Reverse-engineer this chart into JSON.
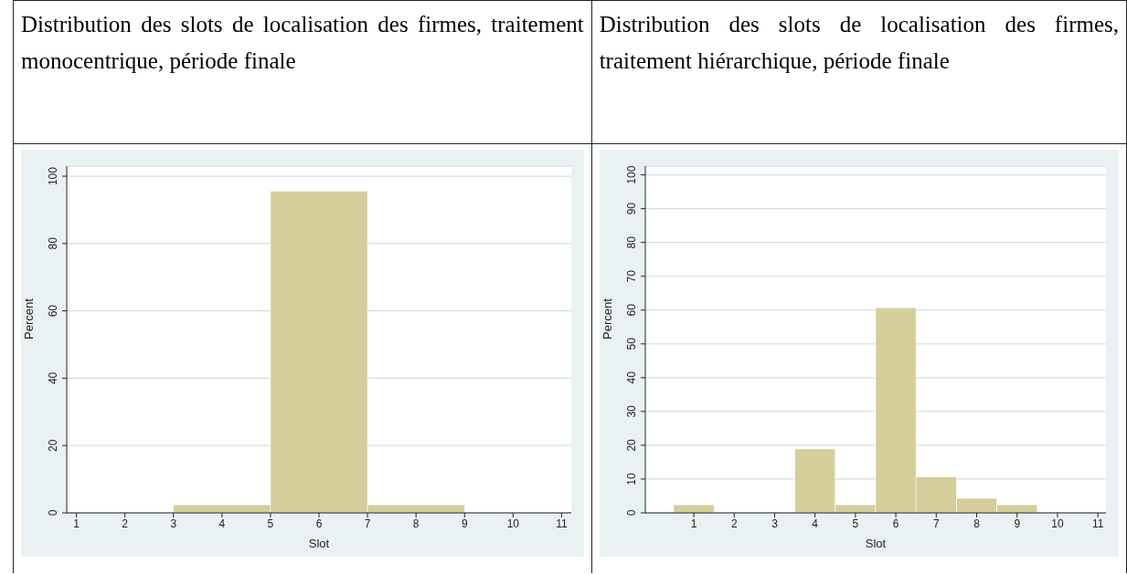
{
  "chart_data": [
    {
      "type": "histogram",
      "title": "Distribution des slots de localisation des firmes, traitement monocentrique, période finale",
      "xlabel": "Slot",
      "ylabel": "Percent",
      "bins": [
        3,
        5,
        7,
        9
      ],
      "values": [
        2.4,
        95.6,
        2.4
      ],
      "color": "#d5cd9a",
      "xlim": [
        0.8,
        11.2
      ],
      "xticks": [
        1,
        2,
        3,
        4,
        5,
        6,
        7,
        8,
        9,
        10,
        11
      ],
      "ylim": [
        0,
        103
      ],
      "yticks": [
        0,
        20,
        40,
        60,
        80,
        100
      ],
      "grid": "y"
    },
    {
      "type": "histogram",
      "title": "Distribution des slots de localisation des firmes, traitement hiérarchique, période finale",
      "xlabel": "Slot",
      "ylabel": "Percent",
      "bins": [
        0.5,
        1.5,
        2.5,
        3.5,
        4.5,
        5.5,
        6.5,
        7.5,
        8.5,
        9.5
      ],
      "values": [
        2.4,
        0,
        0,
        18.9,
        2.4,
        60.7,
        10.7,
        4.3,
        2.4
      ],
      "color": "#d5cd9a",
      "xlim": [
        -0.2,
        11.2
      ],
      "xticks": [
        1,
        2,
        3,
        4,
        5,
        6,
        7,
        8,
        9,
        10,
        11
      ],
      "ylim": [
        0,
        102.6
      ],
      "yticks": [
        0,
        10,
        20,
        30,
        40,
        50,
        60,
        70,
        80,
        90,
        100
      ],
      "grid": "y"
    }
  ]
}
